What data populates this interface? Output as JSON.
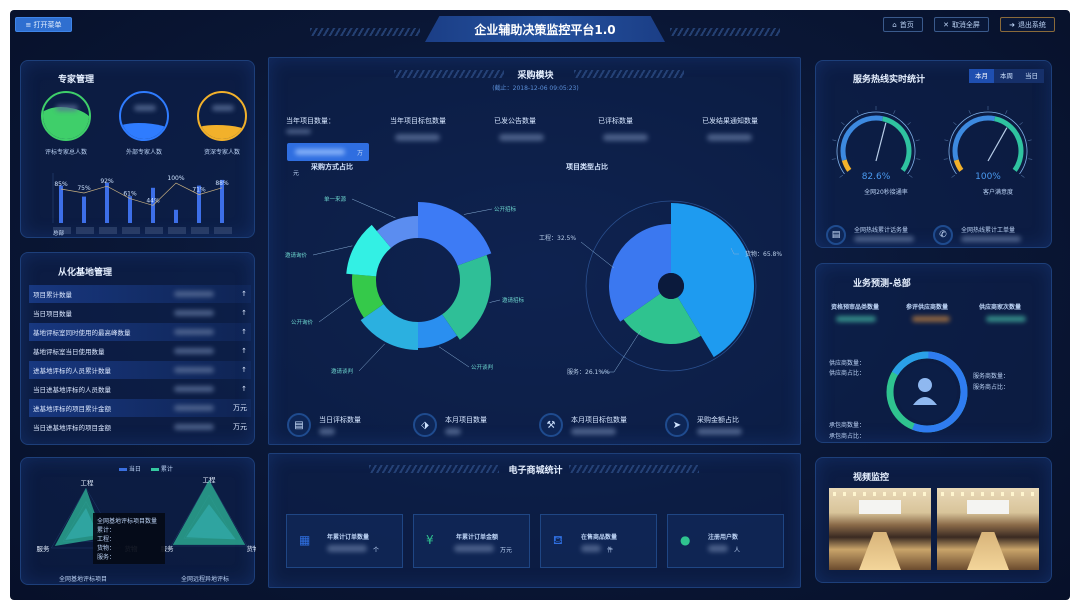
{
  "header": {
    "menu_button": "≡ 打开菜单",
    "title": "企业辅助决策监控平台1.0",
    "home": "首页",
    "exit_fullscreen": "取消全屏",
    "logout": "退出系统"
  },
  "expert": {
    "title": "专家管理",
    "circles": [
      {
        "label": "评标专家总人数",
        "color": "#3fcf6a"
      },
      {
        "label": "外部专家人数",
        "color": "#2f7cff"
      },
      {
        "label": "资深专家人数",
        "color": "#f2b12b"
      }
    ],
    "chart": {
      "type": "bar",
      "first_category": "总部",
      "bar_values": [
        85,
        60,
        92,
        61,
        80,
        30,
        85,
        98
      ],
      "line_labels": [
        "85%",
        "75%",
        "92%",
        "61%",
        "44%",
        "100%",
        "71%",
        "88%"
      ],
      "line_values": [
        85,
        75,
        92,
        61,
        44,
        100,
        71,
        88
      ]
    }
  },
  "base": {
    "title": "从化基地管理",
    "rows": [
      {
        "label": "项目累计数量",
        "unit": "↑"
      },
      {
        "label": "当日项目数量",
        "unit": "↑"
      },
      {
        "label": "基地评标室同时使用的最高峰数量",
        "unit": "↑"
      },
      {
        "label": "基地评标室当日使用数量",
        "unit": "↑"
      },
      {
        "label": "进基地评标的人员累计数量",
        "unit": "↑"
      },
      {
        "label": "当日进基地评标的人员数量",
        "unit": "↑"
      },
      {
        "label": "进基地评标的项目累计金额",
        "unit": "万元"
      },
      {
        "label": "当日进基地评标的项目金额",
        "unit": "万元"
      }
    ]
  },
  "radar": {
    "legend": [
      "当日",
      "累计"
    ],
    "left": {
      "caption": "全网基地评标项目",
      "axes": [
        "工程",
        "货物",
        "服务"
      ]
    },
    "right": {
      "caption": "全网远程异地评标",
      "axes": [
        "工程",
        "货物",
        "服务"
      ]
    },
    "tooltip": {
      "title": "全网基地评标项目数量",
      "lines": [
        "累计：",
        "工程：",
        "货物：",
        "服务："
      ]
    }
  },
  "purchase": {
    "title": "采购模块",
    "date": "(截止：2018-12-06 09:05:23)",
    "stats": [
      "当年项目数量：",
      "当年项目标包数量",
      "已发公告数量",
      "已评标数量",
      "已发结果通知数量"
    ],
    "unit_wan": "万",
    "unit_yuan": "元",
    "method_title": "采购方式占比",
    "type_title": "项目类型占比",
    "bottom": [
      "当日评标数量",
      "本月项目数量",
      "本月项目标包数量",
      "采购金额占比"
    ]
  },
  "chart_data": [
    {
      "type": "pie",
      "title": "采购方式占比",
      "variant": "rose-donut",
      "categories": [
        "公开招标",
        "邀请招标",
        "公开谈判",
        "邀请谈判",
        "公开询价",
        "邀请询价",
        "单一来源"
      ],
      "values": [
        70,
        75,
        35,
        55,
        40,
        45,
        40
      ],
      "colors": [
        "#3d7bf5",
        "#2fbf97",
        "#2a8ff0",
        "#2bb0e0",
        "#35c94a",
        "#33f0e4",
        "#5b8df0"
      ]
    },
    {
      "type": "pie",
      "title": "项目类型占比",
      "variant": "rose",
      "categories": [
        "货物",
        "服务",
        "工程"
      ],
      "labels": [
        "货物：65.8%",
        "服务：26.1%%",
        "工程：32.5%"
      ],
      "values": [
        65.8,
        26.1,
        32.5
      ],
      "colors": [
        "#1e9bf0",
        "#2fc38f",
        "#3b78f0"
      ]
    }
  ],
  "mall": {
    "title": "电子商城统计",
    "cards": [
      {
        "label": "年累计订单数量",
        "unit": "个"
      },
      {
        "label": "年累计订单金额",
        "unit": "万元"
      },
      {
        "label": "在售商品数量",
        "unit": "件"
      },
      {
        "label": "注册用户数",
        "unit": "人"
      }
    ]
  },
  "hotline": {
    "title": "服务热线实时统计",
    "tabs": [
      "本月",
      "本周",
      "当日"
    ],
    "gauges": [
      {
        "value": "82.6%",
        "percent": 82.6,
        "label": "全网20秒接通率"
      },
      {
        "value": "100%",
        "percent": 100,
        "label": "客户满意度"
      }
    ],
    "totals": [
      "全网热线累计话务量",
      "全网热线累计工单量"
    ]
  },
  "forecast": {
    "title": "业务预测-总部",
    "stats": [
      "资格预审品类数量",
      "参评供应商数量",
      "供应商家次数量"
    ],
    "supplier": [
      "供应商数量：",
      "供应商占比："
    ],
    "service": [
      "服务商数量：",
      "服务商占比："
    ],
    "contractor": [
      "承包商数量：",
      "承包商占比："
    ]
  },
  "video": {
    "title": "视频监控"
  }
}
